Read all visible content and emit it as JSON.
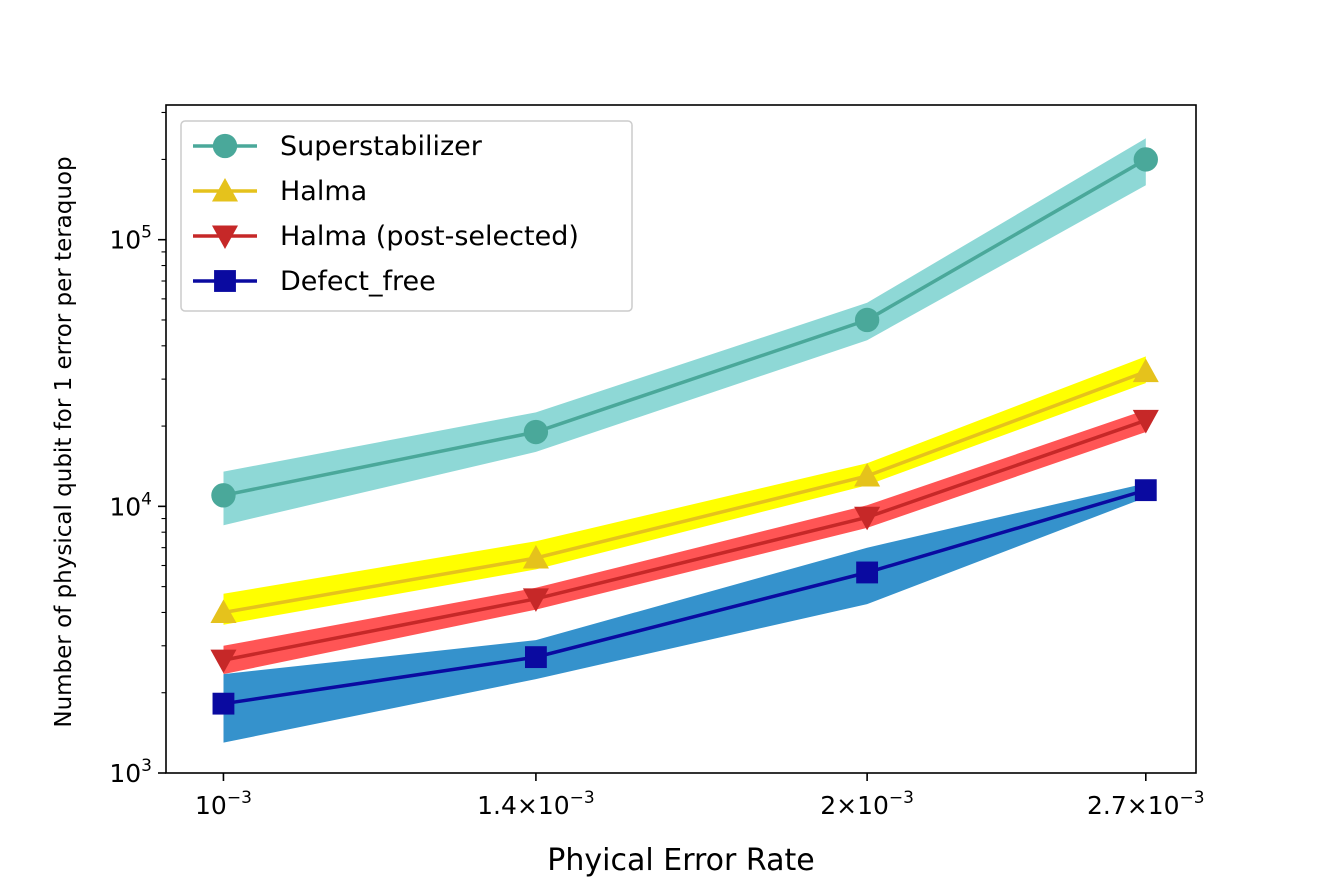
{
  "chart_data": {
    "type": "line",
    "title": "",
    "xlabel": "Phyical Error Rate",
    "ylabel": "Number of physical qubit for 1 error per teraquop",
    "xscale": "log",
    "yscale": "log",
    "x": [
      0.001,
      0.0014,
      0.002,
      0.0027
    ],
    "xticks": [
      {
        "value": 0.001,
        "mantissa": "",
        "exponent": "−3"
      },
      {
        "value": 0.0014,
        "mantissa": "1.4×",
        "exponent": "−3"
      },
      {
        "value": 0.002,
        "mantissa": "2×",
        "exponent": "−3"
      },
      {
        "value": 0.0027,
        "mantissa": "2.7×",
        "exponent": "−3"
      }
    ],
    "yticks": [
      {
        "value": 1000,
        "base": "10",
        "exponent": "3"
      },
      {
        "value": 10000,
        "base": "10",
        "exponent": "4"
      },
      {
        "value": 100000,
        "base": "10",
        "exponent": "5"
      }
    ],
    "xlim": [
      0.00094,
      0.00285
    ],
    "ylim": [
      1000,
      320000
    ],
    "legend_position": "top-left",
    "series": [
      {
        "name": "Superstabilizer",
        "marker": "circle",
        "color": "#4aa89a",
        "band_color": "#8ed8d6",
        "values": [
          11000,
          19000,
          50000,
          200000
        ],
        "lower": [
          8500,
          16000,
          42000,
          160000
        ],
        "upper": [
          13500,
          22500,
          58000,
          240000
        ]
      },
      {
        "name": "Halma",
        "marker": "triangle-up",
        "color": "#e5c21c",
        "band_color": "#ffff00",
        "values": [
          4000,
          6400,
          13000,
          32000
        ],
        "lower": [
          3600,
          5800,
          12000,
          29000
        ],
        "upper": [
          4700,
          7400,
          14500,
          36500
        ]
      },
      {
        "name": "Halma (post-selected)",
        "marker": "triangle-down",
        "color": "#c62828",
        "band_color": "#ff5555",
        "values": [
          2650,
          4500,
          9100,
          21000
        ],
        "lower": [
          2350,
          4100,
          8300,
          19000
        ],
        "upper": [
          3000,
          4950,
          10100,
          23000
        ]
      },
      {
        "name": "Defect_free",
        "marker": "square",
        "color": "#0a0aa0",
        "band_color": "#3592cc",
        "values": [
          1820,
          2720,
          5650,
          11500
        ],
        "lower": [
          1300,
          2250,
          4300,
          10800
        ],
        "upper": [
          2350,
          3150,
          7000,
          12200
        ]
      }
    ]
  }
}
